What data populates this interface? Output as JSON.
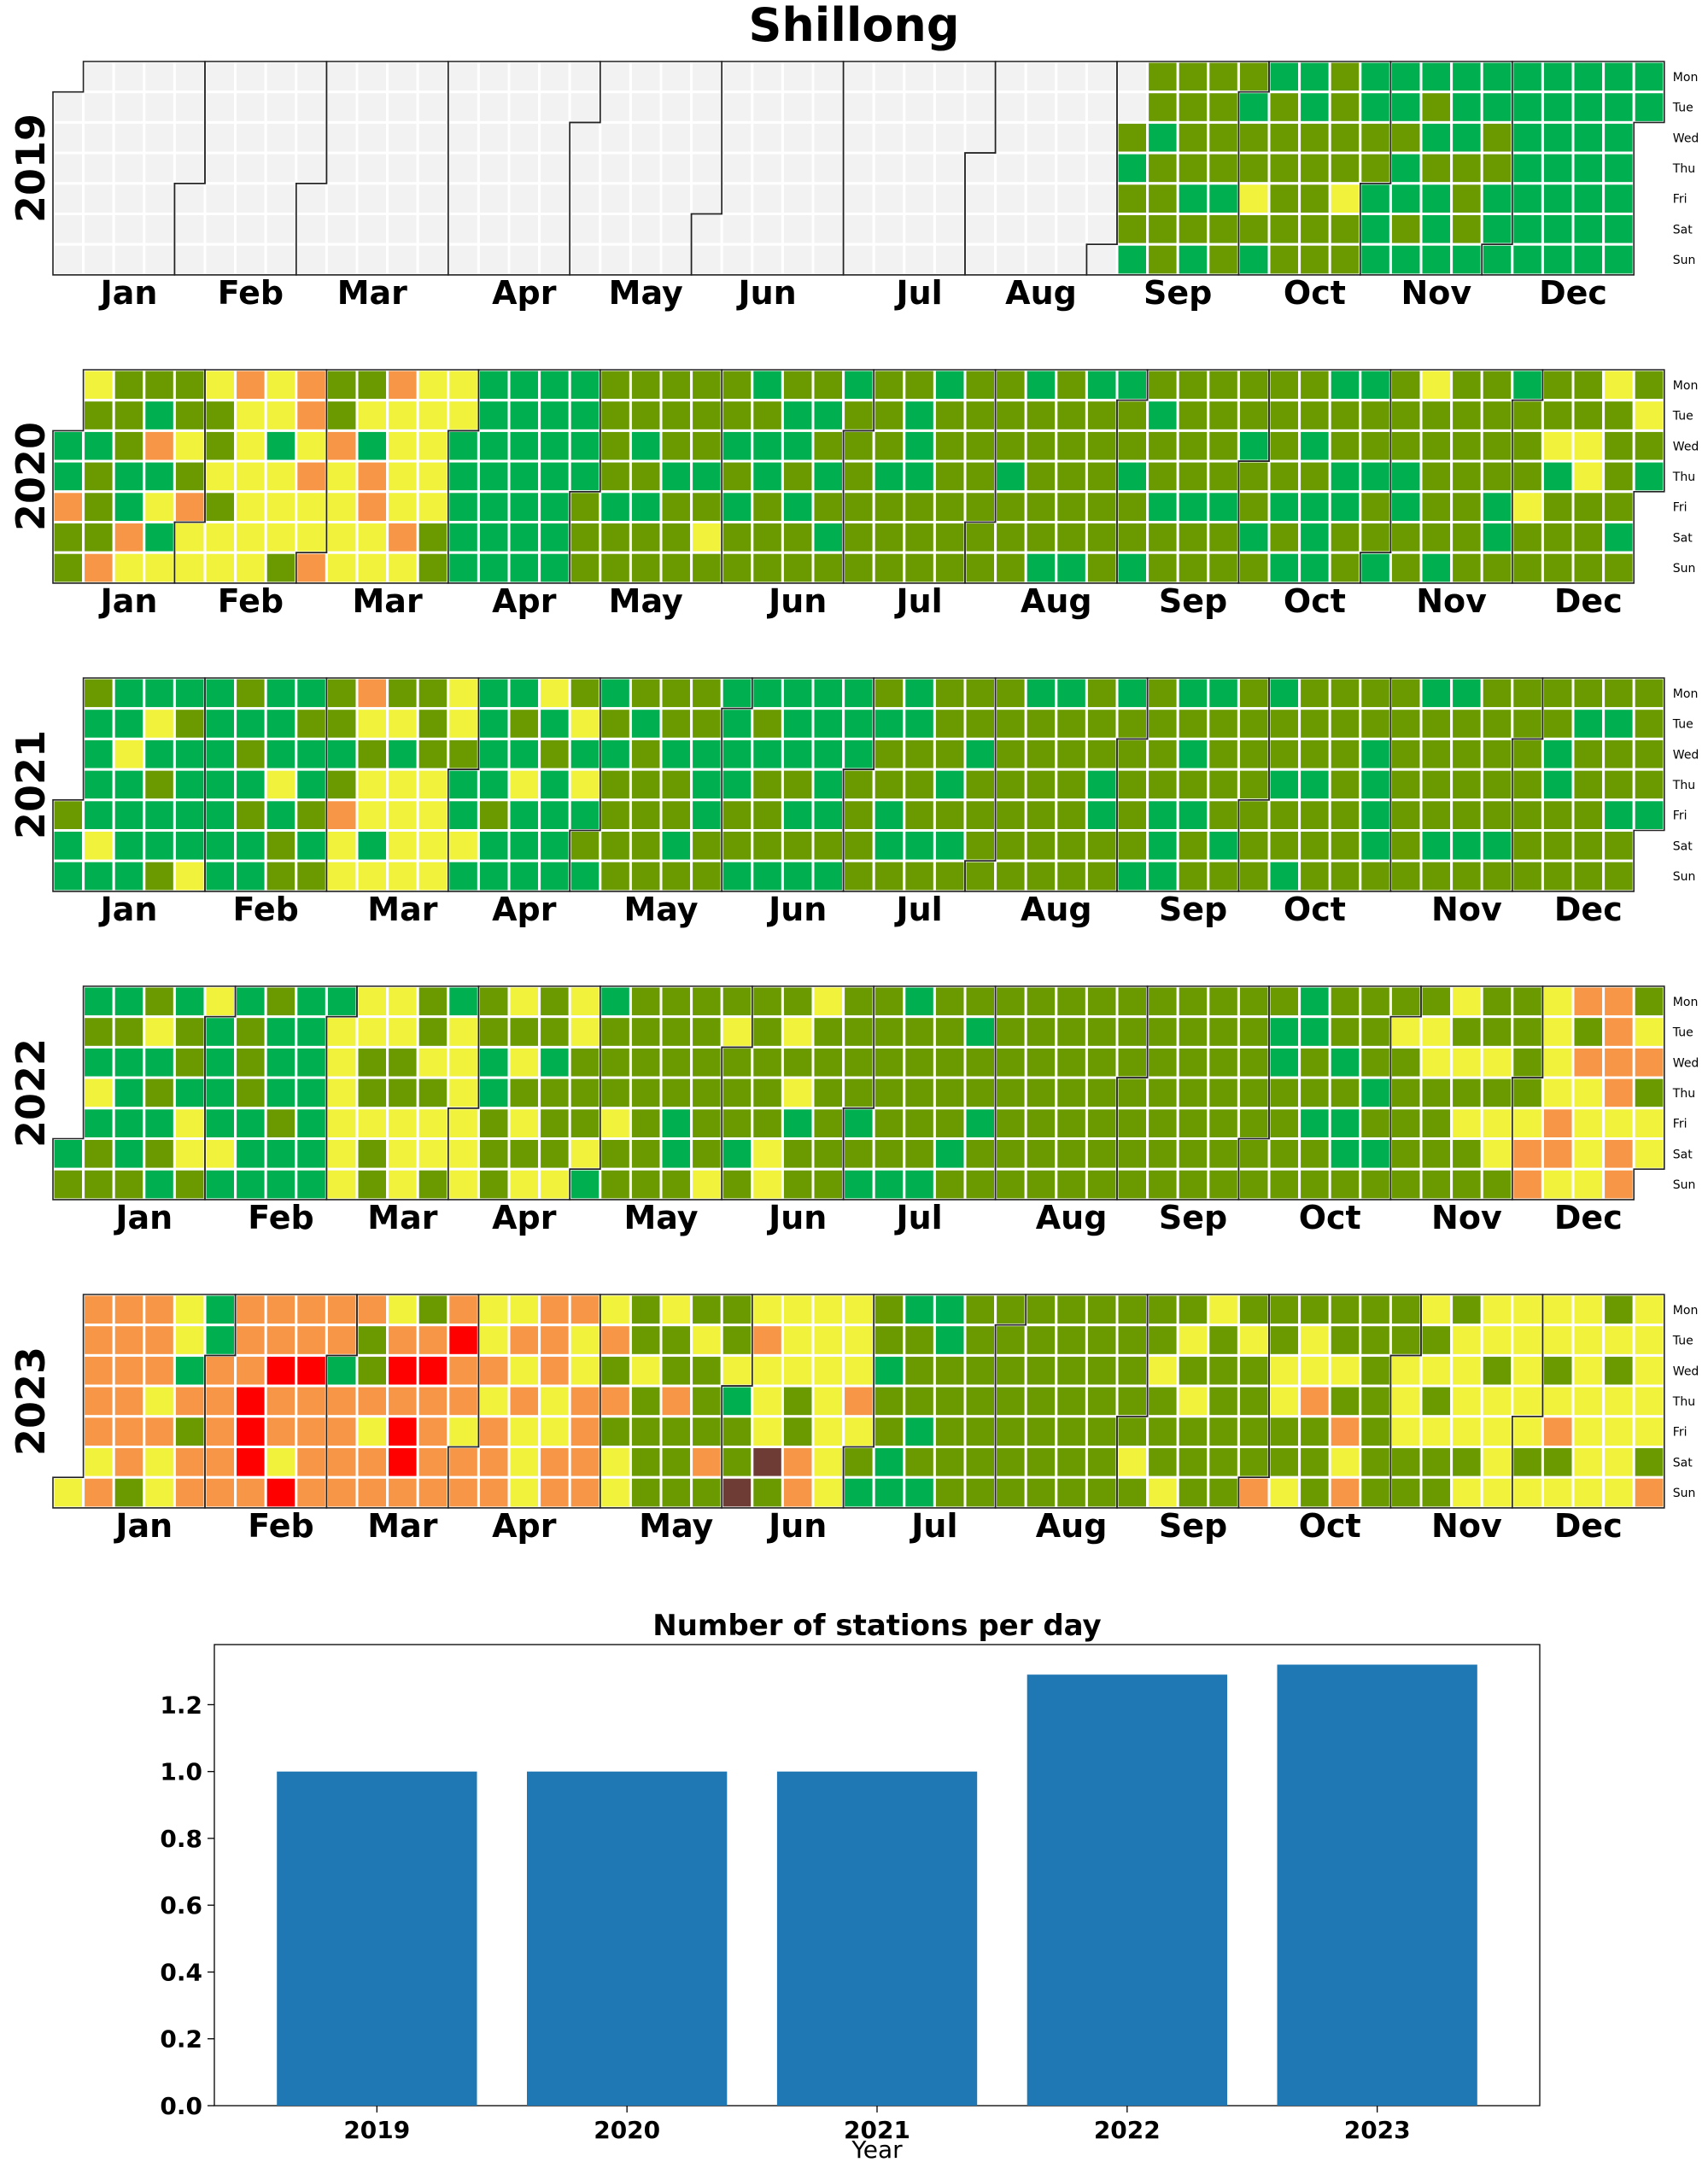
{
  "figure": {
    "title": "Shillong"
  },
  "colors": {
    "background_cell": "#f2f2f2",
    "good": "#00b050",
    "satisfactory": "#6a9a00",
    "moderate": "#f0f23c",
    "poor": "#f79646",
    "very_poor": "#ff0000",
    "severe": "#6e3b35",
    "bar": "#1f77b4"
  },
  "calendar": {
    "month_labels": [
      "Jan",
      "Feb",
      "Mar",
      "Apr",
      "May",
      "Jun",
      "Jul",
      "Aug",
      "Sep",
      "Oct",
      "Nov",
      "Dec"
    ],
    "weekday_labels": [
      "Mon",
      "Tue",
      "Wed",
      "Thu",
      "Fri",
      "Sat",
      "Sun"
    ],
    "years": [
      {
        "year": "2019",
        "first_weekday": 1,
        "days": 365,
        "data_start_doy": 246,
        "dominant": "satisfactory",
        "months": {
          "Sep": [
            "satisfactory",
            "good"
          ],
          "Oct": [
            "satisfactory",
            "good",
            "moderate"
          ],
          "Nov": [
            "good",
            "satisfactory"
          ],
          "Dec": [
            "good"
          ]
        }
      },
      {
        "year": "2020",
        "first_weekday": 2,
        "days": 366,
        "data_start_doy": 0,
        "dominant": "satisfactory",
        "months": {
          "Jan": [
            "satisfactory",
            "good",
            "moderate",
            "poor"
          ],
          "Feb": [
            "moderate",
            "poor",
            "satisfactory",
            "good"
          ],
          "Mar": [
            "moderate",
            "satisfactory",
            "poor",
            "good"
          ],
          "Apr": [
            "good"
          ],
          "May": [
            "satisfactory",
            "good",
            "moderate"
          ],
          "Jun": [
            "satisfactory",
            "good"
          ],
          "Jul": [
            "satisfactory",
            "good"
          ],
          "Aug": [
            "satisfactory",
            "good"
          ],
          "Sep": [
            "satisfactory",
            "good"
          ],
          "Oct": [
            "satisfactory",
            "good"
          ],
          "Nov": [
            "satisfactory",
            "good",
            "moderate"
          ],
          "Dec": [
            "satisfactory",
            "good",
            "moderate"
          ]
        }
      },
      {
        "year": "2021",
        "first_weekday": 4,
        "days": 365,
        "data_start_doy": 0,
        "dominant": "good",
        "months": {
          "Jan": [
            "good",
            "satisfactory",
            "moderate"
          ],
          "Feb": [
            "good",
            "satisfactory",
            "moderate"
          ],
          "Mar": [
            "moderate",
            "satisfactory",
            "good",
            "poor"
          ],
          "Apr": [
            "good",
            "moderate",
            "satisfactory"
          ],
          "May": [
            "satisfactory",
            "good"
          ],
          "Jun": [
            "good",
            "satisfactory"
          ],
          "Jul": [
            "satisfactory",
            "good"
          ],
          "Aug": [
            "satisfactory",
            "good"
          ],
          "Sep": [
            "satisfactory",
            "good"
          ],
          "Oct": [
            "satisfactory",
            "good"
          ],
          "Nov": [
            "satisfactory",
            "good"
          ],
          "Dec": [
            "satisfactory",
            "good"
          ]
        }
      },
      {
        "year": "2022",
        "first_weekday": 5,
        "days": 365,
        "data_start_doy": 0,
        "dominant": "satisfactory",
        "months": {
          "Jan": [
            "satisfactory",
            "good",
            "moderate"
          ],
          "Feb": [
            "good",
            "satisfactory",
            "moderate"
          ],
          "Mar": [
            "moderate",
            "satisfactory",
            "good"
          ],
          "Apr": [
            "satisfactory",
            "moderate",
            "good"
          ],
          "May": [
            "satisfactory",
            "moderate",
            "good"
          ],
          "Jun": [
            "satisfactory",
            "moderate",
            "good"
          ],
          "Jul": [
            "satisfactory",
            "good"
          ],
          "Aug": [
            "satisfactory"
          ],
          "Sep": [
            "satisfactory"
          ],
          "Oct": [
            "satisfactory",
            "good"
          ],
          "Nov": [
            "satisfactory",
            "moderate"
          ],
          "Dec": [
            "moderate",
            "poor",
            "satisfactory"
          ]
        }
      },
      {
        "year": "2023",
        "first_weekday": 6,
        "days": 365,
        "data_start_doy": 0,
        "dominant": "satisfactory",
        "months": {
          "Jan": [
            "poor",
            "moderate",
            "satisfactory",
            "good"
          ],
          "Feb": [
            "poor",
            "moderate",
            "very_poor"
          ],
          "Mar": [
            "poor",
            "very_poor",
            "moderate",
            "satisfactory",
            "good"
          ],
          "Apr": [
            "poor",
            "moderate",
            "satisfactory"
          ],
          "May": [
            "satisfactory",
            "moderate",
            "poor",
            "good"
          ],
          "Jun": [
            "moderate",
            "satisfactory",
            "good",
            "poor",
            "severe"
          ],
          "Jul": [
            "satisfactory",
            "good"
          ],
          "Aug": [
            "satisfactory"
          ],
          "Sep": [
            "satisfactory",
            "moderate"
          ],
          "Oct": [
            "satisfactory",
            "moderate",
            "poor"
          ],
          "Nov": [
            "moderate",
            "satisfactory"
          ],
          "Dec": [
            "moderate",
            "satisfactory",
            "poor"
          ]
        }
      }
    ]
  },
  "chart_data": {
    "type": "bar",
    "title": "Number of stations per day",
    "xlabel": "Year",
    "ylabel": "",
    "categories": [
      "2019",
      "2020",
      "2021",
      "2022",
      "2023"
    ],
    "values": [
      1.0,
      1.0,
      1.0,
      1.29,
      1.32
    ],
    "ylim": [
      0,
      1.38
    ],
    "yticks": [
      "0.0",
      "0.2",
      "0.4",
      "0.6",
      "0.8",
      "1.0",
      "1.2"
    ],
    "grid": false
  }
}
